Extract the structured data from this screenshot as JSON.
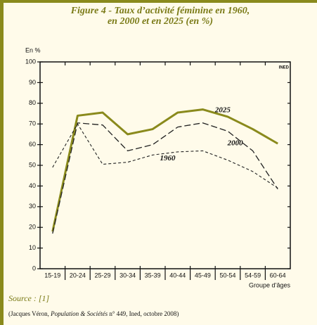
{
  "chart_data": {
    "type": "line",
    "title": [
      "Figure 4 - Taux d’activité féminine en 1960,",
      "en 2000 et en 2025 (en %)"
    ],
    "y_label": "En %",
    "x_label": "Groupe d’âges",
    "logo": "INED",
    "categories": [
      "15-19",
      "20-24",
      "25-29",
      "30-34",
      "35-39",
      "40-44",
      "45-49",
      "50-54",
      "54-59",
      "60-64"
    ],
    "series": [
      {
        "name": "2025",
        "color": "#8a8a1c",
        "values": [
          18,
          74,
          75.5,
          65,
          67.5,
          75.5,
          77,
          73.5,
          67.5,
          60.5
        ]
      },
      {
        "name": "2000",
        "color": "#222222",
        "values": [
          17,
          70.5,
          69.5,
          57,
          60,
          68.5,
          70.5,
          66.5,
          57,
          38.5
        ]
      },
      {
        "name": "1960",
        "color": "#222222",
        "values": [
          49,
          70,
          50.5,
          51.5,
          55,
          56.5,
          57,
          52.5,
          47,
          39
        ]
      }
    ],
    "ylim": [
      0,
      100
    ],
    "yticks": [
      0,
      10,
      20,
      30,
      40,
      50,
      60,
      70,
      80,
      90,
      100
    ],
    "source": "Source : [1]",
    "citation": {
      "before": "(Jacques Véron, ",
      "italic": "Population & Sociétés",
      "after": " n° 449, Ined, octobre 2008)"
    }
  }
}
